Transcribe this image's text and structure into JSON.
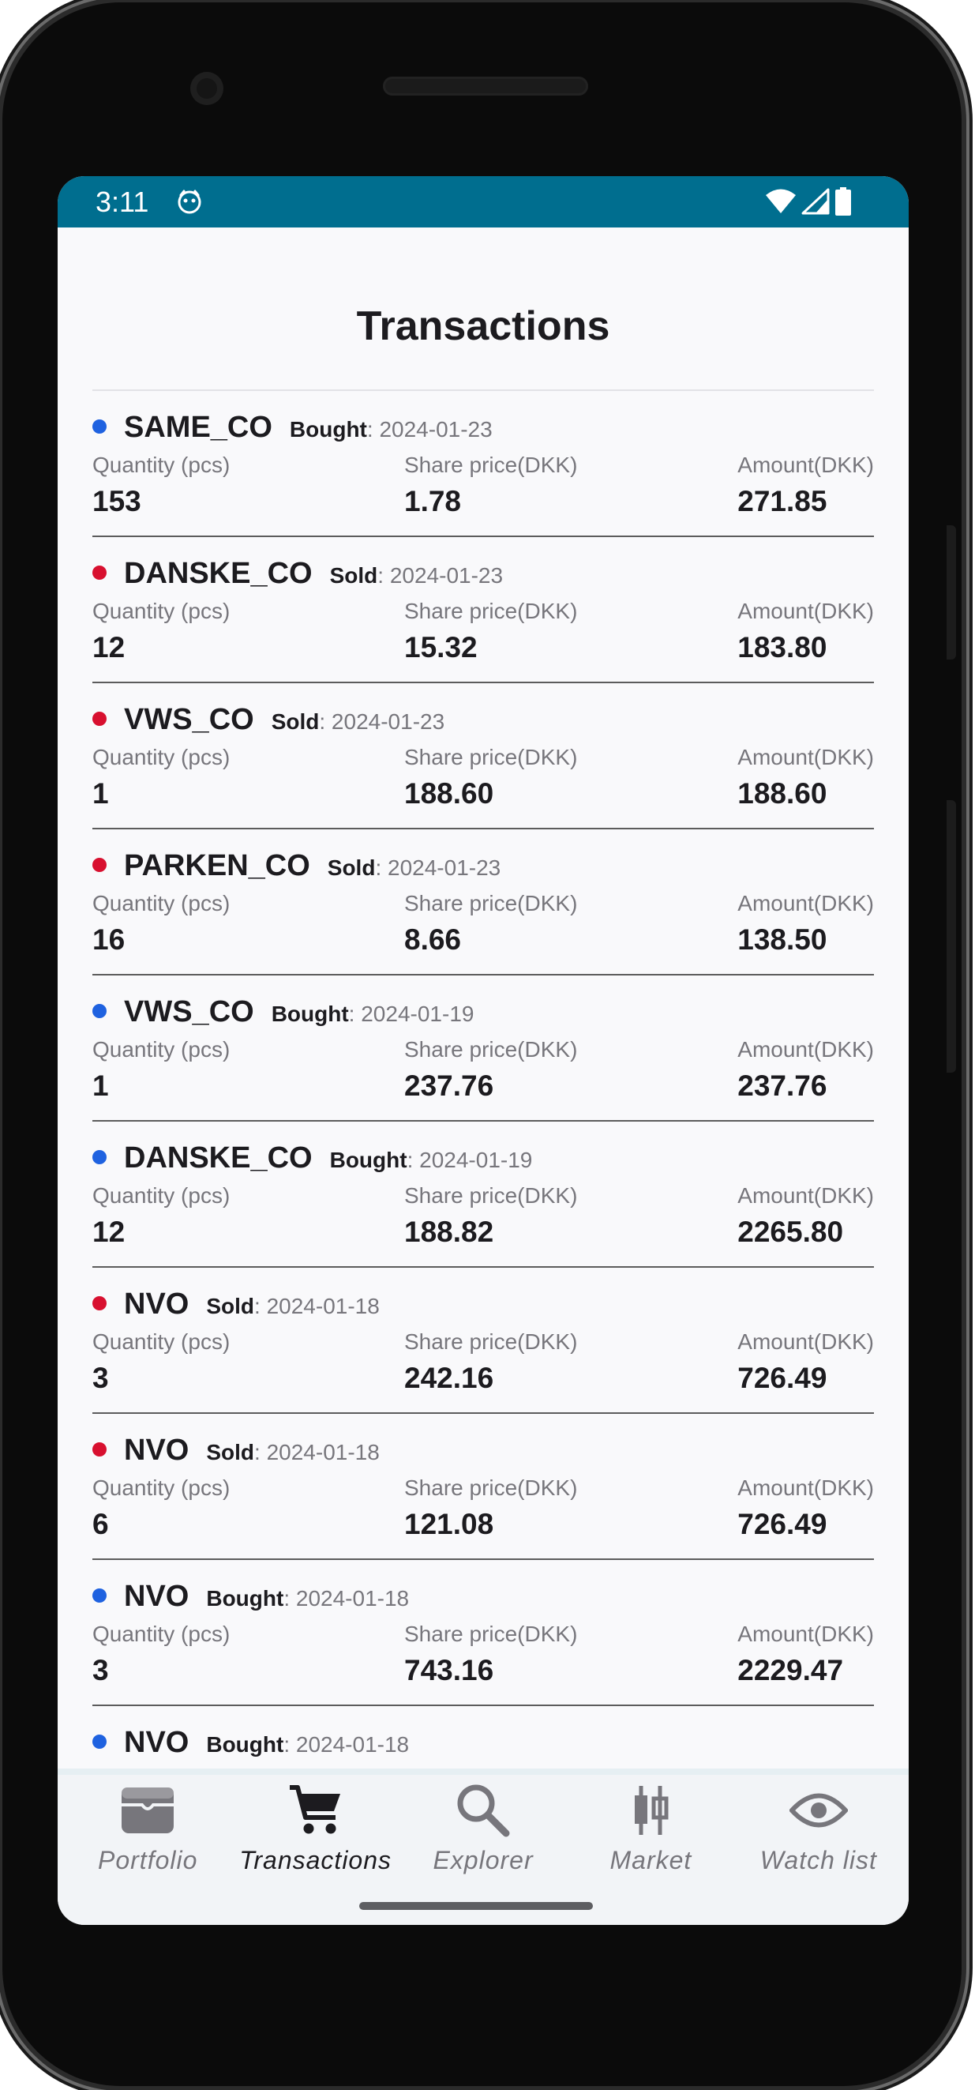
{
  "status_bar": {
    "time": "3:11",
    "background_color": "#006e8f",
    "icons": [
      "app-notification-icon",
      "wifi-icon",
      "cell-signal-icon",
      "battery-icon"
    ]
  },
  "page": {
    "title": "Transactions"
  },
  "labels": {
    "quantity": "Quantity (pcs)",
    "share_price": "Share price(DKK)",
    "amount": "Amount(DKK)"
  },
  "colors": {
    "bought": "#1f62e0",
    "sold": "#d8102f"
  },
  "transactions": [
    {
      "symbol": "SAME_CO",
      "action": "Bought",
      "date": ": 2024-01-23",
      "quantity": "153",
      "share_price": "1.78",
      "amount": "271.85",
      "type": "bought"
    },
    {
      "symbol": "DANSKE_CO",
      "action": "Sold",
      "date": ": 2024-01-23",
      "quantity": "12",
      "share_price": "15.32",
      "amount": "183.80",
      "type": "sold"
    },
    {
      "symbol": "VWS_CO",
      "action": "Sold",
      "date": ": 2024-01-23",
      "quantity": "1",
      "share_price": "188.60",
      "amount": "188.60",
      "type": "sold"
    },
    {
      "symbol": "PARKEN_CO",
      "action": "Sold",
      "date": ": 2024-01-23",
      "quantity": "16",
      "share_price": "8.66",
      "amount": "138.50",
      "type": "sold"
    },
    {
      "symbol": "VWS_CO",
      "action": "Bought",
      "date": ": 2024-01-19",
      "quantity": "1",
      "share_price": "237.76",
      "amount": "237.76",
      "type": "bought"
    },
    {
      "symbol": "DANSKE_CO",
      "action": "Bought",
      "date": ": 2024-01-19",
      "quantity": "12",
      "share_price": "188.82",
      "amount": "2265.80",
      "type": "bought"
    },
    {
      "symbol": "NVO",
      "action": "Sold",
      "date": ": 2024-01-18",
      "quantity": "3",
      "share_price": "242.16",
      "amount": "726.49",
      "type": "sold"
    },
    {
      "symbol": "NVO",
      "action": "Sold",
      "date": ": 2024-01-18",
      "quantity": "6",
      "share_price": "121.08",
      "amount": "726.49",
      "type": "sold"
    },
    {
      "symbol": "NVO",
      "action": "Bought",
      "date": ": 2024-01-18",
      "quantity": "3",
      "share_price": "743.16",
      "amount": "2229.47",
      "type": "bought"
    },
    {
      "symbol": "NVO",
      "action": "Bought",
      "date": ": 2024-01-18",
      "quantity": "",
      "share_price": "",
      "amount": "",
      "type": "bought"
    }
  ],
  "bottom_nav": {
    "items": [
      {
        "label": "Portfolio",
        "icon": "wallet-icon",
        "active": false
      },
      {
        "label": "Transactions",
        "icon": "shopping-cart-icon",
        "active": true
      },
      {
        "label": "Explorer",
        "icon": "search-icon",
        "active": false
      },
      {
        "label": "Market",
        "icon": "candlestick-icon",
        "active": false
      },
      {
        "label": "Watch list",
        "icon": "eye-icon",
        "active": false
      }
    ]
  }
}
